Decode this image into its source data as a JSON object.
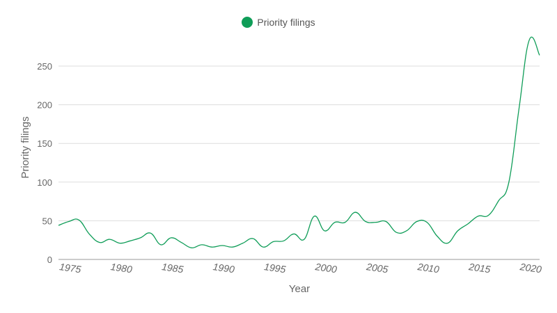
{
  "legend": {
    "label": "Priority filings",
    "color": "#0f9d58"
  },
  "chart_data": {
    "type": "line",
    "title": "",
    "xlabel": "Year",
    "ylabel": "Priority filings",
    "ylim": [
      0,
      290
    ],
    "yticks": [
      0,
      50,
      100,
      150,
      200,
      250
    ],
    "xticks": [
      1975,
      1980,
      1985,
      1990,
      1995,
      2000,
      2005,
      2010,
      2015,
      2020
    ],
    "grid": true,
    "legend_position": "top",
    "x": [
      1974,
      1975,
      1976,
      1977,
      1978,
      1979,
      1980,
      1981,
      1982,
      1983,
      1984,
      1985,
      1986,
      1987,
      1988,
      1989,
      1990,
      1991,
      1992,
      1993,
      1994,
      1995,
      1996,
      1997,
      1998,
      1999,
      2000,
      2001,
      2002,
      2003,
      2004,
      2005,
      2006,
      2007,
      2008,
      2009,
      2010,
      2011,
      2012,
      2013,
      2014,
      2015,
      2016,
      2017,
      2018,
      2019,
      2020,
      2021
    ],
    "series": [
      {
        "name": "Priority filings",
        "color": "#0f9d58",
        "values": [
          44,
          49,
          51,
          33,
          22,
          26,
          21,
          24,
          28,
          34,
          19,
          28,
          22,
          15,
          19,
          16,
          18,
          16,
          21,
          27,
          16,
          23,
          24,
          33,
          26,
          56,
          37,
          48,
          48,
          61,
          49,
          48,
          49,
          35,
          37,
          49,
          48,
          30,
          21,
          37,
          46,
          56,
          57,
          76,
          100,
          196,
          284,
          264
        ]
      }
    ]
  }
}
